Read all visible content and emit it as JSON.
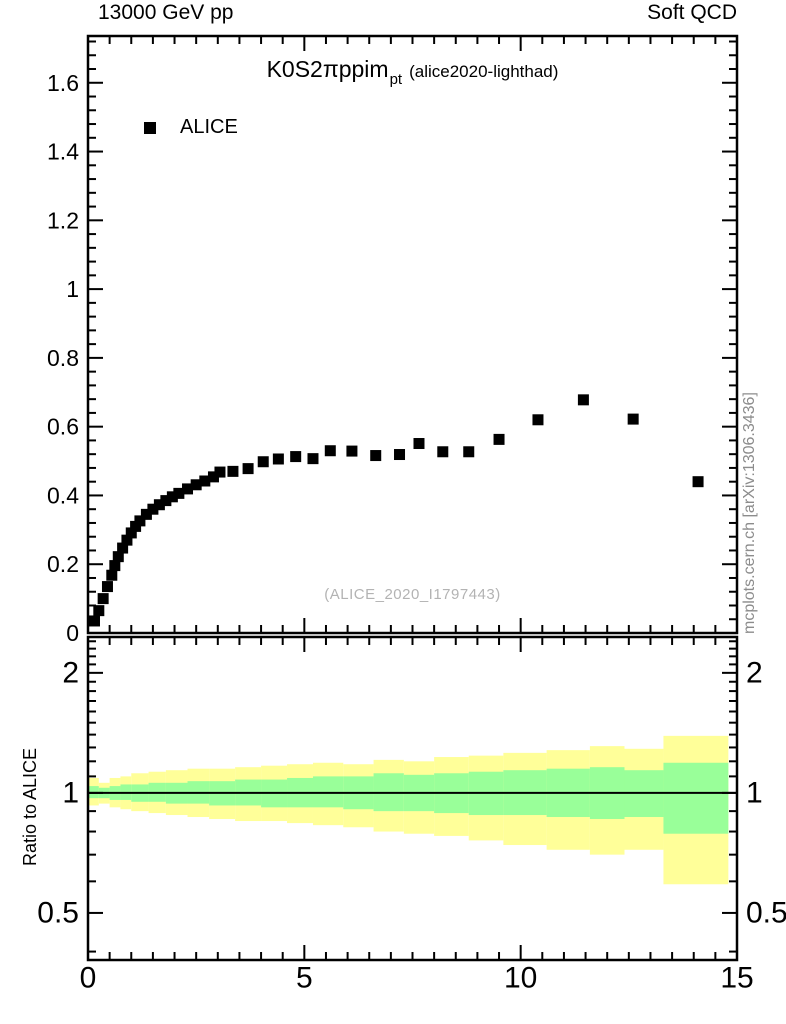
{
  "header": {
    "left": "13000 GeV pp",
    "right": "Soft QCD"
  },
  "title": {
    "main": "K0S2πppim",
    "subscript": "pt",
    "suffix": "(alice2020-lighthad)"
  },
  "legend": {
    "entries": [
      {
        "label": "ALICE",
        "marker": "black-filled-square"
      }
    ]
  },
  "watermark": "(ALICE_2020_I1797443)",
  "side_caption": "mcplots.cern.ch [arXiv:1306.3436]",
  "ratio_axis_label": "Ratio to ALICE",
  "colors": {
    "marker": "#000000",
    "band_outer": "#ffff99",
    "band_inner": "#99ff99",
    "frame": "#000000",
    "gray_text": "#8c8c8c",
    "watermark_text": "#b3b3b3"
  },
  "chart_data": {
    "type": "scatter",
    "title": "K0S2πppim_pt (alice2020-lighthad)",
    "xlabel": "",
    "xlim": [
      0,
      15
    ],
    "x_major_ticks": [
      0,
      5,
      10,
      15
    ],
    "x_major_labels": [
      "0",
      "5",
      "10",
      "15"
    ],
    "x_minor_step": 0.5,
    "top_panel": {
      "ylim": [
        0,
        1.736
      ],
      "y_major_ticks": [
        0,
        0.2,
        0.4,
        0.6,
        0.8,
        1.0,
        1.2,
        1.4,
        1.6
      ],
      "y_major_labels": [
        "0",
        "0.2",
        "0.4",
        "0.6",
        "0.8",
        "1",
        "1.2",
        "1.4",
        "1.6"
      ],
      "y_minor_step": 0.04,
      "series": [
        {
          "name": "ALICE",
          "marker": "filled-square",
          "points": [
            [
              0.15,
              0.035
            ],
            [
              0.25,
              0.065
            ],
            [
              0.35,
              0.1
            ],
            [
              0.45,
              0.135
            ],
            [
              0.55,
              0.168
            ],
            [
              0.62,
              0.196
            ],
            [
              0.7,
              0.222
            ],
            [
              0.8,
              0.247
            ],
            [
              0.9,
              0.27
            ],
            [
              1.0,
              0.291
            ],
            [
              1.1,
              0.31
            ],
            [
              1.2,
              0.326
            ],
            [
              1.35,
              0.345
            ],
            [
              1.5,
              0.36
            ],
            [
              1.65,
              0.373
            ],
            [
              1.8,
              0.385
            ],
            [
              1.95,
              0.396
            ],
            [
              2.1,
              0.406
            ],
            [
              2.3,
              0.419
            ],
            [
              2.5,
              0.431
            ],
            [
              2.7,
              0.442
            ],
            [
              2.9,
              0.454
            ],
            [
              3.05,
              0.468
            ],
            [
              3.35,
              0.47
            ],
            [
              3.7,
              0.478
            ],
            [
              4.05,
              0.498
            ],
            [
              4.4,
              0.506
            ],
            [
              4.8,
              0.513
            ],
            [
              5.2,
              0.507
            ],
            [
              5.6,
              0.53
            ],
            [
              6.1,
              0.529
            ],
            [
              6.65,
              0.516
            ],
            [
              7.2,
              0.519
            ],
            [
              7.65,
              0.551
            ],
            [
              8.2,
              0.527
            ],
            [
              8.8,
              0.527
            ],
            [
              9.5,
              0.563
            ],
            [
              10.4,
              0.62
            ],
            [
              11.45,
              0.678
            ],
            [
              12.6,
              0.622
            ],
            [
              14.1,
              0.44
            ]
          ]
        }
      ]
    },
    "bottom_panel": {
      "ylabel": "Ratio to ALICE",
      "yscale": "log",
      "ylim": [
        0.381,
        2.46
      ],
      "y_major_ticks": [
        0.5,
        1,
        2
      ],
      "y_major_labels": [
        "0.5",
        "1",
        "2"
      ],
      "y_minor_ticks": [
        0.4,
        0.6,
        0.7,
        0.8,
        0.9,
        1.1,
        1.2,
        1.3,
        1.4,
        1.5,
        1.6,
        1.7,
        1.8,
        1.9,
        2.1,
        2.2,
        2.3,
        2.4
      ],
      "reference_line": 1,
      "bands": [
        {
          "x": [
            0.0,
            0.25
          ],
          "outer": [
            0.93,
            1.09
          ],
          "inner": [
            0.97,
            1.04
          ]
        },
        {
          "x": [
            0.25,
            0.5
          ],
          "outer": [
            0.94,
            1.06
          ],
          "inner": [
            0.97,
            1.03
          ]
        },
        {
          "x": [
            0.5,
            0.75
          ],
          "outer": [
            0.92,
            1.09
          ],
          "inner": [
            0.96,
            1.04
          ]
        },
        {
          "x": [
            0.75,
            1.0
          ],
          "outer": [
            0.91,
            1.1
          ],
          "inner": [
            0.96,
            1.05
          ]
        },
        {
          "x": [
            1.0,
            1.4
          ],
          "outer": [
            0.9,
            1.12
          ],
          "inner": [
            0.95,
            1.05
          ]
        },
        {
          "x": [
            1.4,
            1.8
          ],
          "outer": [
            0.89,
            1.13
          ],
          "inner": [
            0.95,
            1.06
          ]
        },
        {
          "x": [
            1.8,
            2.3
          ],
          "outer": [
            0.88,
            1.14
          ],
          "inner": [
            0.94,
            1.06
          ]
        },
        {
          "x": [
            2.3,
            2.8
          ],
          "outer": [
            0.87,
            1.15
          ],
          "inner": [
            0.94,
            1.07
          ]
        },
        {
          "x": [
            2.8,
            3.4
          ],
          "outer": [
            0.86,
            1.15
          ],
          "inner": [
            0.93,
            1.07
          ]
        },
        {
          "x": [
            3.4,
            4.0
          ],
          "outer": [
            0.85,
            1.16
          ],
          "inner": [
            0.93,
            1.08
          ]
        },
        {
          "x": [
            4.0,
            4.6
          ],
          "outer": [
            0.85,
            1.17
          ],
          "inner": [
            0.92,
            1.08
          ]
        },
        {
          "x": [
            4.6,
            5.2
          ],
          "outer": [
            0.84,
            1.18
          ],
          "inner": [
            0.92,
            1.09
          ]
        },
        {
          "x": [
            5.2,
            5.9
          ],
          "outer": [
            0.83,
            1.19
          ],
          "inner": [
            0.92,
            1.1
          ]
        },
        {
          "x": [
            5.9,
            6.6
          ],
          "outer": [
            0.82,
            1.18
          ],
          "inner": [
            0.91,
            1.1
          ]
        },
        {
          "x": [
            6.6,
            7.3
          ],
          "outer": [
            0.8,
            1.21
          ],
          "inner": [
            0.9,
            1.12
          ]
        },
        {
          "x": [
            7.3,
            8.0
          ],
          "outer": [
            0.79,
            1.2
          ],
          "inner": [
            0.9,
            1.11
          ]
        },
        {
          "x": [
            8.0,
            8.8
          ],
          "outer": [
            0.78,
            1.23
          ],
          "inner": [
            0.89,
            1.12
          ]
        },
        {
          "x": [
            8.8,
            9.6
          ],
          "outer": [
            0.76,
            1.24
          ],
          "inner": [
            0.88,
            1.13
          ]
        },
        {
          "x": [
            9.6,
            10.6
          ],
          "outer": [
            0.74,
            1.26
          ],
          "inner": [
            0.88,
            1.14
          ]
        },
        {
          "x": [
            10.6,
            11.6
          ],
          "outer": [
            0.72,
            1.28
          ],
          "inner": [
            0.87,
            1.15
          ]
        },
        {
          "x": [
            11.6,
            12.4
          ],
          "outer": [
            0.7,
            1.31
          ],
          "inner": [
            0.86,
            1.16
          ]
        },
        {
          "x": [
            12.4,
            13.3
          ],
          "outer": [
            0.72,
            1.29
          ],
          "inner": [
            0.87,
            1.14
          ]
        },
        {
          "x": [
            13.3,
            14.8
          ],
          "outer": [
            0.59,
            1.39
          ],
          "inner": [
            0.79,
            1.19
          ]
        }
      ]
    }
  }
}
